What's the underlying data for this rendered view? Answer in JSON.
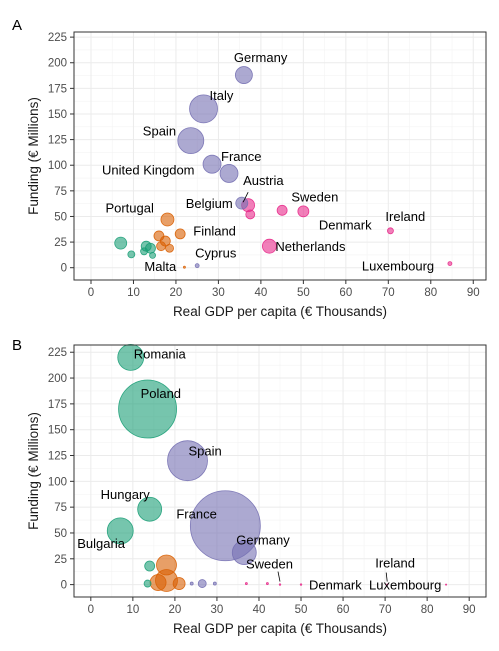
{
  "chart_data": [
    {
      "type": "scatter",
      "panel_tag": "A",
      "xlabel": "Real GDP per capita (€ Thousands)",
      "ylabel": "Funding (€ Millions)",
      "xlim": [
        -4,
        93
      ],
      "ylim": [
        -12,
        230
      ],
      "xticks": [
        0,
        10,
        20,
        30,
        40,
        50,
        60,
        70,
        80,
        90
      ],
      "yticks": [
        0,
        25,
        50,
        75,
        100,
        125,
        150,
        175,
        200,
        225
      ],
      "grid": true,
      "legend": "none",
      "colors": {
        "green": "#1b9e77",
        "orange": "#d95f02",
        "purple": "#7570b3",
        "pink": "#e7298a"
      },
      "points": [
        {
          "x": 36,
          "y": 188,
          "r": 8.5,
          "color": "purple",
          "label": "Germany"
        },
        {
          "x": 26.5,
          "y": 155,
          "r": 14,
          "color": "purple",
          "label": "Italy"
        },
        {
          "x": 23.5,
          "y": 124,
          "r": 13,
          "color": "purple",
          "label": "Spain"
        },
        {
          "x": 28.5,
          "y": 101,
          "r": 9,
          "color": "purple",
          "label": "France"
        },
        {
          "x": 32.5,
          "y": 92,
          "r": 9,
          "color": "purple",
          "label": "United Kingdom"
        },
        {
          "x": 35.5,
          "y": 63,
          "r": 6,
          "color": "purple",
          "label": "Belgium"
        },
        {
          "x": 37,
          "y": 61,
          "r": 6.5,
          "color": "pink",
          "label": "Austria"
        },
        {
          "x": 37.5,
          "y": 52,
          "r": 4.5,
          "color": "pink",
          "label": "Finland"
        },
        {
          "x": 45,
          "y": 56,
          "r": 5,
          "color": "pink",
          "label": ""
        },
        {
          "x": 50,
          "y": 55,
          "r": 5.5,
          "color": "pink",
          "label": "Sweden"
        },
        {
          "x": 42,
          "y": 21,
          "r": 7,
          "color": "pink",
          "label": "Netherlands"
        },
        {
          "x": 70.5,
          "y": 36,
          "r": 3,
          "color": "pink",
          "label": "Ireland"
        },
        {
          "x": 84.5,
          "y": 4,
          "r": 2,
          "color": "pink",
          "label": "Luxembourg"
        },
        {
          "x": 56,
          "y": 50,
          "r": 0,
          "color": "pink",
          "label": "Denmark"
        },
        {
          "x": 25,
          "y": 2,
          "r": 2,
          "color": "purple",
          "label": "Cyprus"
        },
        {
          "x": 22,
          "y": 0.5,
          "r": 1,
          "color": "orange",
          "label": "Malta"
        },
        {
          "x": 18,
          "y": 47,
          "r": 6.5,
          "color": "orange",
          "label": "Portugal"
        },
        {
          "x": 21,
          "y": 33,
          "r": 5,
          "color": "orange",
          "label": ""
        },
        {
          "x": 16,
          "y": 31,
          "r": 5,
          "color": "orange",
          "label": ""
        },
        {
          "x": 17.5,
          "y": 26,
          "r": 5,
          "color": "orange",
          "label": ""
        },
        {
          "x": 16.5,
          "y": 21,
          "r": 4.5,
          "color": "orange",
          "label": ""
        },
        {
          "x": 18.5,
          "y": 19,
          "r": 4,
          "color": "orange",
          "label": ""
        },
        {
          "x": 7,
          "y": 24,
          "r": 6,
          "color": "green",
          "label": ""
        },
        {
          "x": 9.5,
          "y": 13,
          "r": 3.5,
          "color": "green",
          "label": ""
        },
        {
          "x": 13,
          "y": 21,
          "r": 5,
          "color": "green",
          "label": ""
        },
        {
          "x": 14,
          "y": 19,
          "r": 5,
          "color": "green",
          "label": ""
        },
        {
          "x": 12.5,
          "y": 16,
          "r": 3.5,
          "color": "green",
          "label": ""
        },
        {
          "x": 14.5,
          "y": 12,
          "r": 3,
          "color": "green",
          "label": ""
        }
      ]
    },
    {
      "type": "scatter",
      "panel_tag": "B",
      "xlabel": "Real GDP per capita (€ Thousands)",
      "ylabel": "Funding (€ Millions)",
      "xlim": [
        -4,
        94
      ],
      "ylim": [
        -12,
        232
      ],
      "xticks": [
        0,
        10,
        20,
        30,
        40,
        50,
        60,
        70,
        80,
        90
      ],
      "yticks": [
        0,
        25,
        50,
        75,
        100,
        125,
        150,
        175,
        200,
        225
      ],
      "grid": true,
      "legend": "none",
      "colors": {
        "green": "#1b9e77",
        "orange": "#d95f02",
        "purple": "#7570b3",
        "pink": "#e7298a"
      },
      "points": [
        {
          "x": 9.5,
          "y": 220,
          "r": 13,
          "color": "green",
          "label": "Romania"
        },
        {
          "x": 13.5,
          "y": 170,
          "r": 29,
          "color": "green",
          "label": "Poland"
        },
        {
          "x": 23,
          "y": 120,
          "r": 20,
          "color": "purple",
          "label": "Spain"
        },
        {
          "x": 14,
          "y": 73,
          "r": 12,
          "color": "green",
          "label": "Hungary"
        },
        {
          "x": 32,
          "y": 57,
          "r": 35,
          "color": "purple",
          "label": "France"
        },
        {
          "x": 7,
          "y": 52,
          "r": 13,
          "color": "green",
          "label": "Bulgaria"
        },
        {
          "x": 36.5,
          "y": 31,
          "r": 12,
          "color": "purple",
          "label": "Germany"
        },
        {
          "x": 18,
          "y": 19,
          "r": 10,
          "color": "orange",
          "label": ""
        },
        {
          "x": 14,
          "y": 18,
          "r": 5,
          "color": "green",
          "label": ""
        },
        {
          "x": 18,
          "y": 4,
          "r": 11,
          "color": "orange",
          "label": ""
        },
        {
          "x": 16,
          "y": 2,
          "r": 8,
          "color": "orange",
          "label": ""
        },
        {
          "x": 21,
          "y": 1,
          "r": 6,
          "color": "orange",
          "label": ""
        },
        {
          "x": 13.5,
          "y": 1,
          "r": 3.5,
          "color": "green",
          "label": ""
        },
        {
          "x": 26.5,
          "y": 1,
          "r": 4,
          "color": "purple",
          "label": ""
        },
        {
          "x": 24,
          "y": 1,
          "r": 1.5,
          "color": "purple",
          "label": ""
        },
        {
          "x": 29.5,
          "y": 1,
          "r": 1.5,
          "color": "purple",
          "label": ""
        },
        {
          "x": 37,
          "y": 1,
          "r": 1,
          "color": "pink",
          "label": ""
        },
        {
          "x": 42,
          "y": 1,
          "r": 1,
          "color": "pink",
          "label": ""
        },
        {
          "x": 45,
          "y": 0,
          "r": 0.8,
          "color": "pink",
          "label": "Sweden"
        },
        {
          "x": 50,
          "y": 0,
          "r": 0.8,
          "color": "pink",
          "label": "Denmark"
        },
        {
          "x": 70.5,
          "y": 0,
          "r": 0.6,
          "color": "pink",
          "label": "Ireland"
        },
        {
          "x": 84.5,
          "y": 0,
          "r": 0.6,
          "color": "pink",
          "label": "Luxembourg"
        }
      ]
    }
  ]
}
